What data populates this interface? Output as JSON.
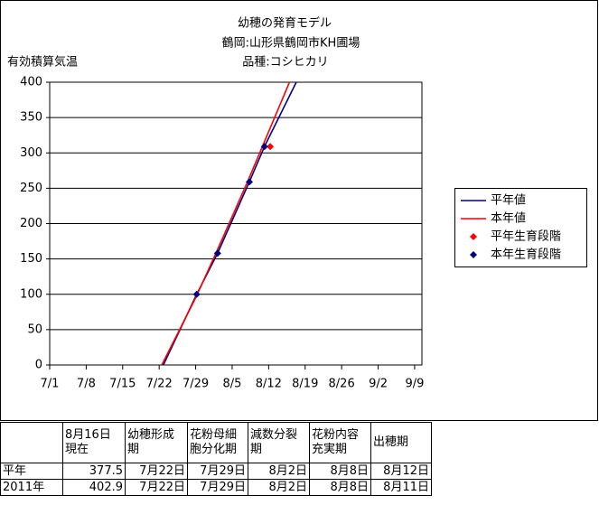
{
  "chart_data": {
    "type": "line",
    "title": [
      "幼穂の発育モデル",
      "鶴岡:山形県鶴岡市KH圃場",
      "品種:コシヒカリ"
    ],
    "y_label": "有効積算気温",
    "xlim": [
      0,
      71.4
    ],
    "ylim": [
      0,
      400
    ],
    "xticks": [
      {
        "value": 0,
        "label": "7/1"
      },
      {
        "value": 7,
        "label": "7/8"
      },
      {
        "value": 14,
        "label": "7/15"
      },
      {
        "value": 21,
        "label": "7/22"
      },
      {
        "value": 28,
        "label": "7/29"
      },
      {
        "value": 35,
        "label": "8/5"
      },
      {
        "value": 42,
        "label": "8/12"
      },
      {
        "value": 49,
        "label": "8/19"
      },
      {
        "value": 56,
        "label": "8/26"
      },
      {
        "value": 63,
        "label": "9/2"
      },
      {
        "value": 70,
        "label": "9/9"
      }
    ],
    "yticks": [
      0,
      50,
      100,
      150,
      200,
      250,
      300,
      350,
      400
    ],
    "grid": true,
    "series": [
      {
        "name": "平年値",
        "color": "#000080",
        "mark": "line",
        "x": [
          21.8,
          28.2,
          32.2,
          38.3,
          41.2,
          47.3
        ],
        "values": [
          0,
          100,
          158,
          259,
          309,
          400
        ]
      },
      {
        "name": "本年値",
        "color": "#ff0000",
        "mark": "line",
        "x": [
          21.5,
          28,
          32,
          38,
          42,
          46
        ],
        "values": [
          0,
          95,
          160,
          260,
          330,
          400
        ]
      },
      {
        "name": "平年生育段階",
        "color": "#ff0000",
        "mark": "diamond",
        "x": [
          42.3
        ],
        "values": [
          309
        ]
      },
      {
        "name": "本年生育段階",
        "color": "#000080",
        "mark": "diamond",
        "x": [
          28.2,
          32.2,
          38.3,
          41.2
        ],
        "values": [
          100,
          158,
          259,
          309
        ]
      }
    ]
  },
  "table": {
    "header": [
      [
        "8月16日",
        "現在"
      ],
      [
        "幼穂形成",
        "期"
      ],
      [
        "花粉母細",
        "胞分化期"
      ],
      [
        "減数分裂",
        "期"
      ],
      [
        "花粉内容",
        "充実期"
      ],
      [
        "出穂期"
      ]
    ],
    "rows": [
      [
        "平年",
        377.5,
        "7月22日",
        "7月29日",
        "8月2日",
        "8月8日",
        "8月12日"
      ],
      [
        "2011年",
        402.9,
        "7月22日",
        "7月29日",
        "8月2日",
        "8月8日",
        "8月11日"
      ]
    ]
  }
}
